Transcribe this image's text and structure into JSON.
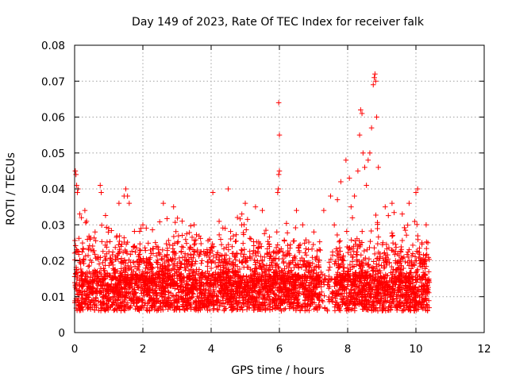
{
  "chart_data": {
    "type": "scatter",
    "title": "Day 149 of 2023, Rate Of TEC Index for receiver falk",
    "xlabel": "GPS time / hours",
    "ylabel": "ROTI / TECUs",
    "xlim": [
      0,
      12
    ],
    "ylim": [
      0,
      0.08
    ],
    "x_ticks": [
      "0",
      "2",
      "4",
      "6",
      "8",
      "10",
      "12"
    ],
    "y_ticks": [
      "0",
      "0.01",
      "0.02",
      "0.03",
      "0.04",
      "0.05",
      "0.06",
      "0.07",
      "0.08"
    ],
    "x_tick_values": [
      0,
      2,
      4,
      6,
      8,
      10,
      12
    ],
    "y_tick_values": [
      0,
      0.01,
      0.02,
      0.03,
      0.04,
      0.05,
      0.06,
      0.07,
      0.08
    ],
    "grid": true,
    "marker": "+",
    "marker_color": "#ff0000",
    "data_x_range": [
      0,
      10.4
    ],
    "series": [
      {
        "values": [
          [
            0.02,
            0.045
          ],
          [
            0.04,
            0.044
          ],
          [
            0.06,
            0.041
          ],
          [
            0.08,
            0.039
          ],
          [
            0.1,
            0.04
          ],
          [
            0.15,
            0.033
          ],
          [
            0.2,
            0.032
          ],
          [
            0.3,
            0.034
          ],
          [
            0.35,
            0.031
          ],
          [
            0.45,
            0.026
          ],
          [
            0.6,
            0.028
          ],
          [
            0.75,
            0.041
          ],
          [
            0.78,
            0.039
          ],
          [
            1.0,
            0.029
          ],
          [
            1.3,
            0.036
          ],
          [
            1.45,
            0.038
          ],
          [
            1.5,
            0.04
          ],
          [
            1.55,
            0.038
          ],
          [
            1.6,
            0.036
          ],
          [
            2.0,
            0.03
          ],
          [
            2.6,
            0.036
          ],
          [
            2.9,
            0.035
          ],
          [
            3.5,
            0.03
          ],
          [
            4.05,
            0.039
          ],
          [
            4.5,
            0.04
          ],
          [
            4.9,
            0.033
          ],
          [
            5.0,
            0.036
          ],
          [
            5.3,
            0.035
          ],
          [
            5.5,
            0.034
          ],
          [
            5.95,
            0.039
          ],
          [
            5.97,
            0.04
          ],
          [
            5.98,
            0.044
          ],
          [
            6.0,
            0.045
          ],
          [
            6.0,
            0.055
          ],
          [
            5.98,
            0.064
          ],
          [
            6.5,
            0.034
          ],
          [
            7.3,
            0.034
          ],
          [
            7.5,
            0.038
          ],
          [
            7.7,
            0.037
          ],
          [
            7.8,
            0.042
          ],
          [
            7.95,
            0.048
          ],
          [
            8.05,
            0.043
          ],
          [
            8.1,
            0.035
          ],
          [
            8.2,
            0.038
          ],
          [
            8.3,
            0.045
          ],
          [
            8.35,
            0.055
          ],
          [
            8.38,
            0.062
          ],
          [
            8.42,
            0.061
          ],
          [
            8.45,
            0.05
          ],
          [
            8.5,
            0.046
          ],
          [
            8.55,
            0.041
          ],
          [
            8.6,
            0.048
          ],
          [
            8.65,
            0.05
          ],
          [
            8.7,
            0.057
          ],
          [
            8.75,
            0.069
          ],
          [
            8.78,
            0.071
          ],
          [
            8.8,
            0.072
          ],
          [
            8.82,
            0.07
          ],
          [
            8.85,
            0.06
          ],
          [
            8.9,
            0.046
          ],
          [
            9.1,
            0.035
          ],
          [
            9.3,
            0.036
          ],
          [
            9.6,
            0.033
          ],
          [
            9.8,
            0.036
          ],
          [
            10.0,
            0.039
          ],
          [
            10.05,
            0.04
          ],
          [
            10.3,
            0.03
          ],
          [
            10.35,
            0.025
          ]
        ]
      }
    ]
  }
}
